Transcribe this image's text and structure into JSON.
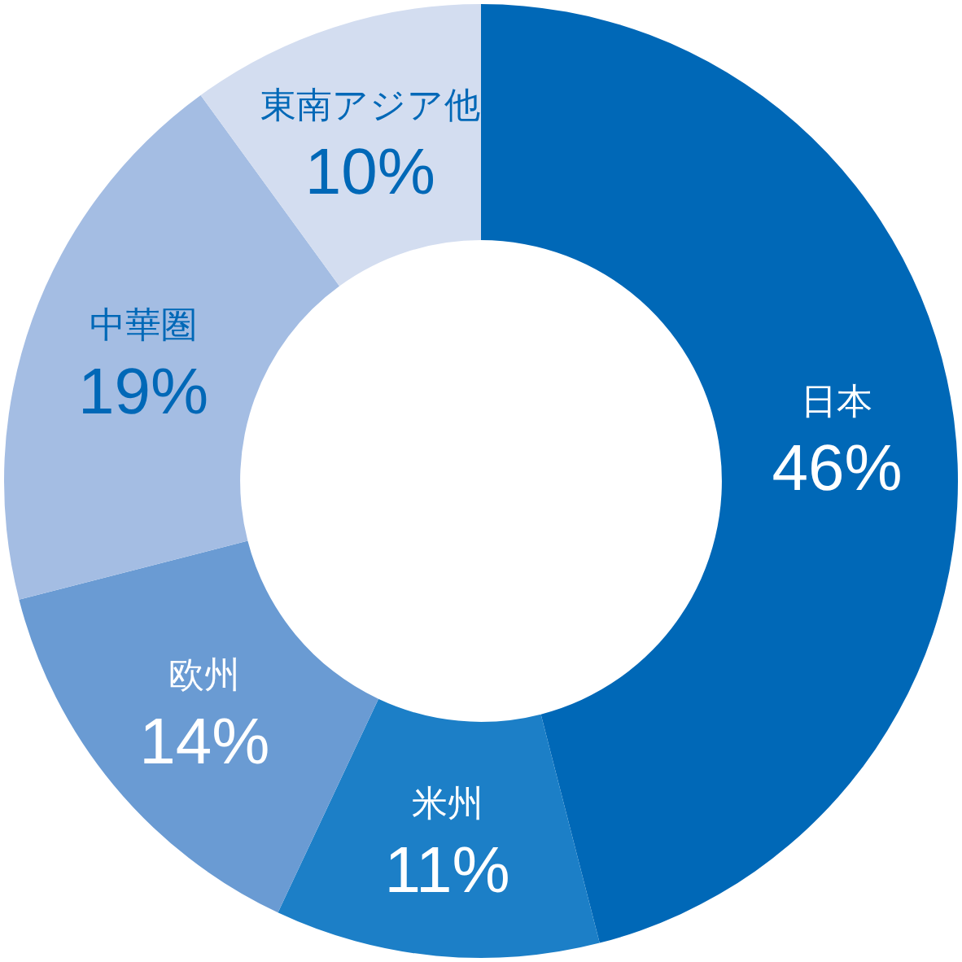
{
  "chart_data": {
    "type": "donut",
    "categories": [
      "日本",
      "米州",
      "欧州",
      "中華圏",
      "東南アジア他"
    ],
    "values": [
      46,
      11,
      14,
      19,
      10
    ],
    "colors": [
      "#0068b7",
      "#1c7fc7",
      "#6a9bd3",
      "#a4bde3",
      "#d3ddf0"
    ],
    "value_labels": [
      "46%",
      "11%",
      "14%",
      "19%",
      "10%"
    ]
  }
}
